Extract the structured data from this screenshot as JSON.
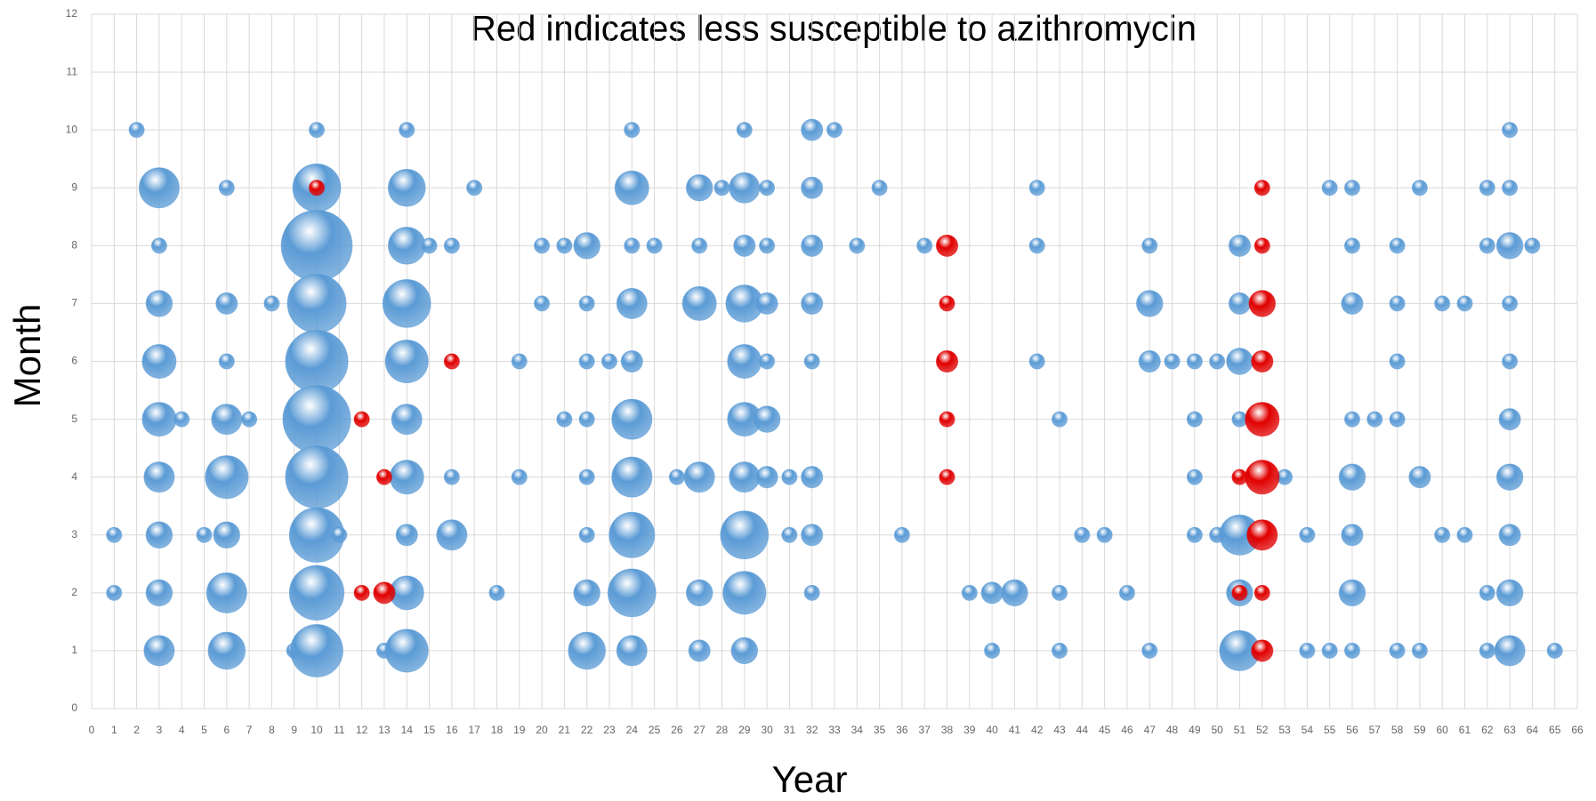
{
  "chart_data": {
    "type": "bubble",
    "title": "Red indicates less susceptible to azithromycin",
    "x_label": "Year",
    "y_label": "Month",
    "xlim": [
      0,
      66
    ],
    "ylim": [
      0,
      12
    ],
    "xticks": [
      0,
      1,
      2,
      3,
      4,
      5,
      6,
      7,
      8,
      9,
      10,
      11,
      12,
      13,
      14,
      15,
      16,
      17,
      18,
      19,
      20,
      21,
      22,
      23,
      24,
      25,
      26,
      27,
      28,
      29,
      30,
      31,
      32,
      33,
      34,
      35,
      36,
      37,
      38,
      39,
      40,
      41,
      42,
      43,
      44,
      45,
      46,
      47,
      48,
      49,
      50,
      51,
      52,
      53,
      54,
      55,
      56,
      57,
      58,
      59,
      60,
      61,
      62,
      63,
      64,
      65,
      66
    ],
    "yticks": [
      0,
      1,
      2,
      3,
      4,
      5,
      6,
      7,
      8,
      9,
      10,
      11,
      12
    ],
    "grid": true,
    "series": [
      {
        "color": "#5b9bd5",
        "x": [
          1,
          1,
          2,
          3,
          3,
          3,
          3,
          3,
          3,
          3,
          3,
          3,
          4,
          5,
          6,
          6,
          6,
          6,
          6,
          6,
          6,
          6,
          7,
          8,
          9,
          10,
          10,
          10,
          10,
          10,
          10,
          10,
          10,
          10,
          10,
          11,
          13,
          14,
          14,
          14,
          14,
          14,
          14,
          14,
          14,
          14,
          14,
          15,
          16,
          16,
          16,
          17,
          18,
          19,
          19,
          20,
          20,
          21,
          21,
          22,
          22,
          22,
          22,
          22,
          22,
          22,
          22,
          23,
          24,
          24,
          24,
          24,
          24,
          24,
          24,
          24,
          24,
          24,
          25,
          26,
          27,
          27,
          27,
          27,
          27,
          27,
          28,
          29,
          29,
          29,
          29,
          29,
          29,
          29,
          29,
          29,
          29,
          30,
          30,
          30,
          30,
          30,
          30,
          31,
          31,
          32,
          32,
          32,
          32,
          32,
          32,
          32,
          32,
          33,
          34,
          35,
          36,
          37,
          39,
          40,
          40,
          41,
          42,
          42,
          42,
          43,
          43,
          43,
          44,
          45,
          46,
          47,
          47,
          47,
          47,
          48,
          49,
          49,
          49,
          49,
          50,
          50,
          51,
          51,
          51,
          51,
          51,
          51,
          51,
          53,
          54,
          54,
          55,
          55,
          56,
          56,
          56,
          56,
          56,
          56,
          56,
          56,
          57,
          58,
          58,
          58,
          58,
          58,
          59,
          59,
          59,
          60,
          60,
          61,
          61,
          62,
          62,
          62,
          62,
          63,
          63,
          63,
          63,
          63,
          63,
          63,
          63,
          63,
          63,
          64,
          65
        ],
        "y": [
          3,
          2,
          10,
          9,
          8,
          7,
          6,
          5,
          4,
          3,
          2,
          1,
          5,
          3,
          9,
          7,
          6,
          5,
          4,
          3,
          2,
          1,
          5,
          7,
          1,
          10,
          9,
          8,
          7,
          6,
          5,
          4,
          3,
          2,
          1,
          3,
          1,
          10,
          9,
          8,
          7,
          6,
          5,
          4,
          3,
          2,
          1,
          8,
          8,
          4,
          3,
          9,
          2,
          6,
          4,
          8,
          7,
          8,
          5,
          8,
          7,
          6,
          5,
          4,
          3,
          2,
          1,
          6,
          10,
          9,
          8,
          7,
          6,
          5,
          4,
          3,
          2,
          1,
          8,
          4,
          9,
          8,
          7,
          4,
          2,
          1,
          9,
          10,
          9,
          8,
          7,
          6,
          5,
          4,
          3,
          2,
          1,
          9,
          8,
          7,
          6,
          5,
          4,
          4,
          3,
          10,
          9,
          8,
          7,
          6,
          4,
          3,
          2,
          10,
          8,
          9,
          3,
          8,
          2,
          2,
          1,
          2,
          9,
          8,
          6,
          5,
          2,
          1,
          3,
          3,
          2,
          8,
          7,
          6,
          1,
          6,
          6,
          5,
          4,
          3,
          6,
          3,
          8,
          7,
          6,
          5,
          3,
          2,
          1,
          4,
          3,
          1,
          9,
          1,
          9,
          8,
          7,
          5,
          4,
          3,
          2,
          1,
          5,
          8,
          7,
          6,
          5,
          1,
          9,
          4,
          1,
          7,
          3,
          7,
          3,
          9,
          8,
          2,
          1,
          10,
          9,
          8,
          7,
          6,
          5,
          4,
          3,
          2,
          1,
          8,
          1
        ],
        "size": [
          1,
          1,
          1,
          7,
          1,
          3,
          5,
          5,
          4,
          3,
          3,
          4,
          1,
          1,
          1,
          2,
          1,
          4,
          8,
          3,
          7,
          6,
          1,
          1,
          1,
          1,
          10,
          22,
          15,
          17,
          20,
          17,
          13,
          13,
          12,
          1,
          1,
          1,
          6,
          6,
          10,
          8,
          4,
          5,
          2,
          5,
          8,
          1,
          1,
          1,
          4,
          1,
          1,
          1,
          1,
          1,
          1,
          1,
          1,
          3,
          1,
          1,
          1,
          1,
          1,
          3,
          6,
          1,
          1,
          5,
          1,
          4,
          2,
          7,
          7,
          9,
          10,
          4,
          1,
          1,
          3,
          1,
          5,
          4,
          3,
          2,
          1,
          1,
          4,
          2,
          6,
          5,
          5,
          4,
          10,
          8,
          3,
          1,
          1,
          2,
          1,
          3,
          2,
          1,
          1,
          2,
          2,
          2,
          2,
          1,
          2,
          2,
          1,
          1,
          1,
          1,
          1,
          1,
          1,
          2,
          1,
          3,
          1,
          1,
          1,
          1,
          1,
          1,
          1,
          1,
          1,
          1,
          3,
          2,
          1,
          1,
          1,
          1,
          1,
          1,
          1,
          1,
          2,
          2,
          3,
          1,
          7,
          3,
          7,
          1,
          1,
          1,
          1,
          1,
          1,
          1,
          2,
          1,
          3,
          2,
          3,
          1,
          1,
          1,
          1,
          1,
          1,
          1,
          1,
          2,
          1,
          1,
          1,
          1,
          1,
          1,
          1,
          1,
          1,
          1,
          1,
          3,
          1,
          1,
          2,
          3,
          2,
          3,
          4,
          1,
          1
        ]
      },
      {
        "color": "#e00000",
        "x": [
          10,
          12,
          12,
          13,
          13,
          16,
          38,
          38,
          38,
          38,
          38,
          51,
          51,
          52,
          52,
          52,
          52,
          52,
          52,
          52,
          52,
          52
        ],
        "y": [
          9,
          5,
          2,
          4,
          2,
          6,
          8,
          7,
          6,
          5,
          4,
          4,
          2,
          9,
          8,
          7,
          6,
          5,
          4,
          3,
          2,
          1
        ],
        "size": [
          1,
          1,
          1,
          1,
          2,
          1,
          2,
          1,
          2,
          1,
          1,
          1,
          1,
          1,
          1,
          3,
          2,
          5,
          5,
          4,
          1,
          2
        ]
      }
    ]
  }
}
